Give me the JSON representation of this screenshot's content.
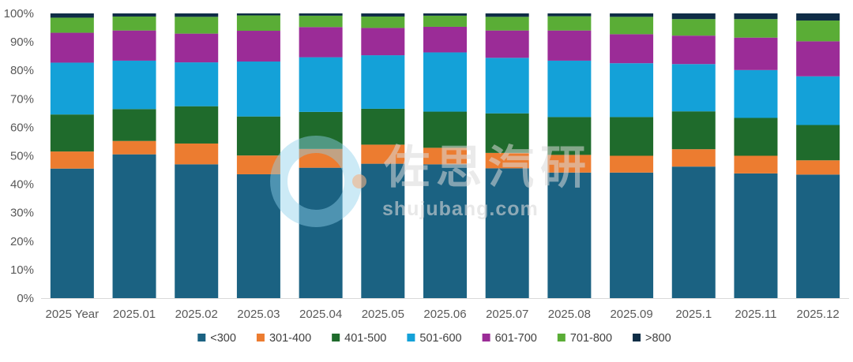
{
  "chart_data": {
    "type": "bar",
    "stacked": true,
    "percent": true,
    "categories": [
      "2025 Year",
      "2025.01",
      "2025.02",
      "2025.03",
      "2025.04",
      "2025.05",
      "2025.06",
      "2025.07",
      "2025.08",
      "2025.09",
      "2025.1",
      "2025.11",
      "2025.12"
    ],
    "series": [
      {
        "name": "<300",
        "color": "#1b6282",
        "values": [
          45.5,
          50.5,
          47.0,
          43.5,
          45.8,
          47.2,
          47.0,
          45.6,
          44.1,
          44.1,
          46.2,
          43.8,
          43.4
        ]
      },
      {
        "name": "301-400",
        "color": "#ec7c30",
        "values": [
          6.0,
          4.7,
          7.3,
          6.6,
          6.6,
          6.7,
          5.8,
          5.4,
          6.2,
          5.9,
          6.1,
          6.2,
          5.0
        ]
      },
      {
        "name": "401-500",
        "color": "#1f6b2c",
        "values": [
          13.0,
          11.2,
          13.1,
          13.7,
          13.0,
          12.6,
          12.7,
          13.9,
          13.3,
          13.6,
          13.3,
          13.3,
          12.4
        ]
      },
      {
        "name": "501-600",
        "color": "#14a1d8",
        "values": [
          18.2,
          17.0,
          15.4,
          19.3,
          19.2,
          18.8,
          20.8,
          19.5,
          19.8,
          18.9,
          16.6,
          16.8,
          17.1
        ]
      },
      {
        "name": "601-700",
        "color": "#9b2c97",
        "values": [
          10.5,
          10.6,
          10.1,
          10.8,
          10.6,
          9.6,
          9.0,
          9.6,
          10.6,
          10.2,
          10.0,
          11.4,
          12.3
        ]
      },
      {
        "name": "701-800",
        "color": "#5aad36",
        "values": [
          5.3,
          4.9,
          5.9,
          5.4,
          4.0,
          4.0,
          3.9,
          4.8,
          5.0,
          6.1,
          5.8,
          6.5,
          7.3
        ]
      },
      {
        "name": ">800",
        "color": "#0f2d46",
        "values": [
          1.5,
          1.1,
          1.2,
          0.7,
          0.8,
          1.1,
          0.8,
          1.2,
          1.0,
          1.2,
          2.0,
          2.0,
          2.5
        ]
      }
    ],
    "ylim": [
      0,
      100
    ],
    "y_ticks": [
      "0%",
      "10%",
      "20%",
      "30%",
      "40%",
      "50%",
      "60%",
      "70%",
      "80%",
      "90%",
      "100%"
    ],
    "title": "",
    "xlabel": "",
    "ylabel": "",
    "grid": false,
    "legend_position": "bottom-center"
  },
  "watermark": {
    "chinese": "佐思汽研",
    "url": "shujubang.com"
  }
}
